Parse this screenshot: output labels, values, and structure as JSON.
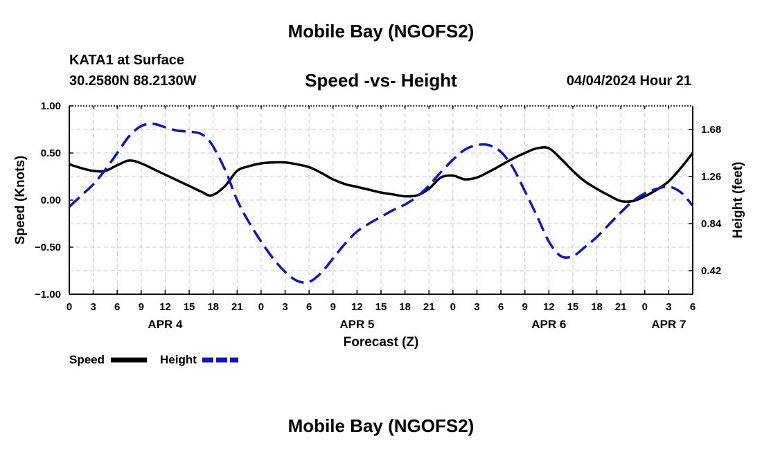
{
  "header": {
    "title": "Mobile Bay (NGOFS2)",
    "station": "KATA1 at Surface",
    "coords": "30.2580N  88.2130W",
    "plot_title": "Speed -vs- Height",
    "datetime": "04/04/2024 Hour 21"
  },
  "footer": {
    "title": "Mobile Bay (NGOFS2)"
  },
  "chart_data": {
    "type": "line",
    "xlabel": "Forecast (Z)",
    "ylabel_left": "Speed (Knots)",
    "ylabel_right": "Height (feet)",
    "x_range_hours": [
      0,
      78
    ],
    "x_ticks": [
      0,
      3,
      6,
      9,
      12,
      15,
      18,
      21,
      24,
      27,
      30,
      33,
      36,
      39,
      42,
      45,
      48,
      51,
      54,
      57,
      60,
      63,
      66,
      69,
      72,
      75,
      78
    ],
    "x_tick_labels": [
      "0",
      "3",
      "6",
      "9",
      "12",
      "15",
      "18",
      "21",
      "0",
      "3",
      "6",
      "9",
      "12",
      "15",
      "18",
      "21",
      "0",
      "3",
      "6",
      "9",
      "12",
      "15",
      "18",
      "21",
      "0",
      "3",
      "6"
    ],
    "day_labels": [
      {
        "hour": 12,
        "label": "APR 4"
      },
      {
        "hour": 36,
        "label": "APR 5"
      },
      {
        "hour": 60,
        "label": "APR 6"
      },
      {
        "hour": 75,
        "label": "APR 7"
      }
    ],
    "ylim_left": [
      -1.0,
      1.0
    ],
    "y_ticks_left": [
      -1.0,
      -0.5,
      0.0,
      0.5,
      1.0
    ],
    "y_tick_labels_left": [
      "−1.00",
      "−0.50",
      "0.00",
      "0.50",
      "1.00"
    ],
    "ylim_right": [
      0.21,
      1.89
    ],
    "y_ticks_right": [
      0.42,
      0.84,
      1.26,
      1.68
    ],
    "y_tick_labels_right": [
      "0.42",
      "0.84",
      "1.26",
      "1.68"
    ],
    "grid": true,
    "legend_position": "bottom-left",
    "series": [
      {
        "name": "Speed",
        "axis": "left",
        "color": "#000000",
        "dash": "solid",
        "x": [
          0,
          1.5,
          3,
          4.5,
          6,
          7.5,
          9,
          10.5,
          12,
          13.5,
          15,
          16.5,
          17.8,
          19.5,
          21,
          22.5,
          24,
          25.5,
          27,
          28.5,
          30,
          31.5,
          33,
          34.5,
          36,
          37.5,
          39,
          40.5,
          42,
          43.5,
          45,
          46.5,
          48,
          49.5,
          51,
          52.5,
          54,
          55.5,
          57,
          58.5,
          60,
          61.5,
          63,
          64.5,
          66,
          67.5,
          69,
          70.5,
          72,
          73.5,
          75,
          76.5,
          78
        ],
        "values": [
          0.38,
          0.34,
          0.31,
          0.31,
          0.37,
          0.42,
          0.39,
          0.33,
          0.27,
          0.21,
          0.15,
          0.09,
          0.05,
          0.15,
          0.31,
          0.36,
          0.39,
          0.4,
          0.4,
          0.38,
          0.35,
          0.29,
          0.22,
          0.17,
          0.14,
          0.11,
          0.08,
          0.06,
          0.04,
          0.05,
          0.12,
          0.24,
          0.26,
          0.22,
          0.24,
          0.3,
          0.37,
          0.44,
          0.5,
          0.55,
          0.55,
          0.44,
          0.31,
          0.2,
          0.12,
          0.05,
          -0.01,
          -0.01,
          0.04,
          0.11,
          0.2,
          0.34,
          0.5
        ]
      },
      {
        "name": "Height",
        "axis": "right",
        "color": "#0b14c8",
        "dash": "dashed",
        "x": [
          0,
          1.5,
          3,
          4.5,
          6,
          7.5,
          9,
          10.5,
          12,
          13.5,
          15,
          16.5,
          17.8,
          19.5,
          21,
          22.5,
          24,
          25.5,
          27,
          28.5,
          30,
          31.5,
          33,
          34.5,
          36,
          37.5,
          39,
          40.5,
          42,
          43.5,
          45,
          46.5,
          48,
          49.5,
          51,
          52.5,
          54,
          55.5,
          57,
          58.5,
          60,
          61.5,
          63,
          64.5,
          66,
          67.5,
          69,
          70.5,
          72,
          73.5,
          75,
          76.5,
          78
        ],
        "values": [
          0.99,
          1.09,
          1.19,
          1.32,
          1.47,
          1.62,
          1.71,
          1.73,
          1.7,
          1.67,
          1.66,
          1.64,
          1.55,
          1.32,
          1.05,
          0.85,
          0.68,
          0.53,
          0.41,
          0.33,
          0.32,
          0.4,
          0.53,
          0.66,
          0.77,
          0.84,
          0.9,
          0.96,
          1.01,
          1.08,
          1.18,
          1.3,
          1.41,
          1.5,
          1.54,
          1.54,
          1.48,
          1.34,
          1.13,
          0.91,
          0.68,
          0.55,
          0.55,
          0.63,
          0.72,
          0.83,
          0.94,
          1.04,
          1.11,
          1.15,
          1.17,
          1.12,
          1.0
        ]
      }
    ]
  }
}
